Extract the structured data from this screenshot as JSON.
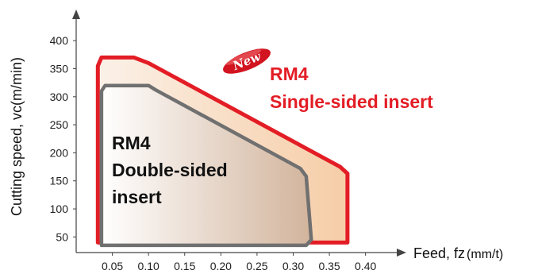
{
  "chart_data": {
    "type": "area",
    "xlabel": "Feed, fz",
    "xlabel_unit": "(mm/t)",
    "ylabel": "Cutting speed, vc(m/min)",
    "x_ticks": [
      "0.05",
      "0.10",
      "0.15",
      "0.20",
      "0.25",
      "0.30",
      "0.35",
      "0.40"
    ],
    "y_ticks": [
      "50",
      "100",
      "150",
      "200",
      "250",
      "300",
      "350",
      "400"
    ],
    "xlim": [
      0.0,
      0.43
    ],
    "ylim": [
      25,
      430
    ],
    "grid": false,
    "series": [
      {
        "name": "RM4 Single-sided insert",
        "label_lines": [
          "RM4",
          "Single-sided insert"
        ],
        "badge": "New",
        "color": "#e31d25",
        "points": [
          [
            0.03,
            40
          ],
          [
            0.03,
            355
          ],
          [
            0.035,
            370
          ],
          [
            0.08,
            370
          ],
          [
            0.1,
            360
          ],
          [
            0.365,
            175
          ],
          [
            0.375,
            163
          ],
          [
            0.375,
            40
          ]
        ]
      },
      {
        "name": "RM4 Double-sided insert",
        "label_lines": [
          "RM4",
          "Double-sided",
          "insert"
        ],
        "color": "#707070",
        "points": [
          [
            0.035,
            35
          ],
          [
            0.035,
            310
          ],
          [
            0.04,
            320
          ],
          [
            0.1,
            320
          ],
          [
            0.11,
            312
          ],
          [
            0.31,
            172
          ],
          [
            0.318,
            158
          ],
          [
            0.325,
            45
          ],
          [
            0.318,
            35
          ]
        ]
      }
    ]
  }
}
